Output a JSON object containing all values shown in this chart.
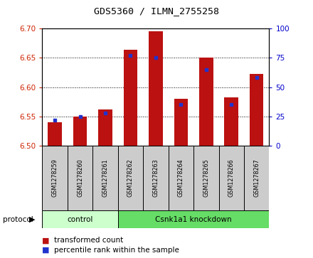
{
  "title": "GDS5360 / ILMN_2755258",
  "samples": [
    "GSM1278259",
    "GSM1278260",
    "GSM1278261",
    "GSM1278262",
    "GSM1278263",
    "GSM1278264",
    "GSM1278265",
    "GSM1278266",
    "GSM1278267"
  ],
  "transformed_count": [
    6.54,
    6.55,
    6.562,
    6.663,
    6.695,
    6.58,
    6.65,
    6.582,
    6.623
  ],
  "percentile_rank": [
    22,
    25,
    28,
    77,
    75,
    35,
    65,
    35,
    58
  ],
  "ylim_left": [
    6.5,
    6.7
  ],
  "ylim_right": [
    0,
    100
  ],
  "yticks_left": [
    6.5,
    6.55,
    6.6,
    6.65,
    6.7
  ],
  "yticks_right": [
    0,
    25,
    50,
    75,
    100
  ],
  "bar_color": "#bb1111",
  "marker_color": "#2233cc",
  "control_color": "#ccffcc",
  "knockdown_color": "#66dd66",
  "gray_box_color": "#cccccc",
  "legend_items": [
    {
      "label": "transformed count",
      "color": "#bb1111"
    },
    {
      "label": "percentile rank within the sample",
      "color": "#2233cc"
    }
  ],
  "left_tick_color": "#cc2200",
  "right_tick_color": "#0000cc"
}
